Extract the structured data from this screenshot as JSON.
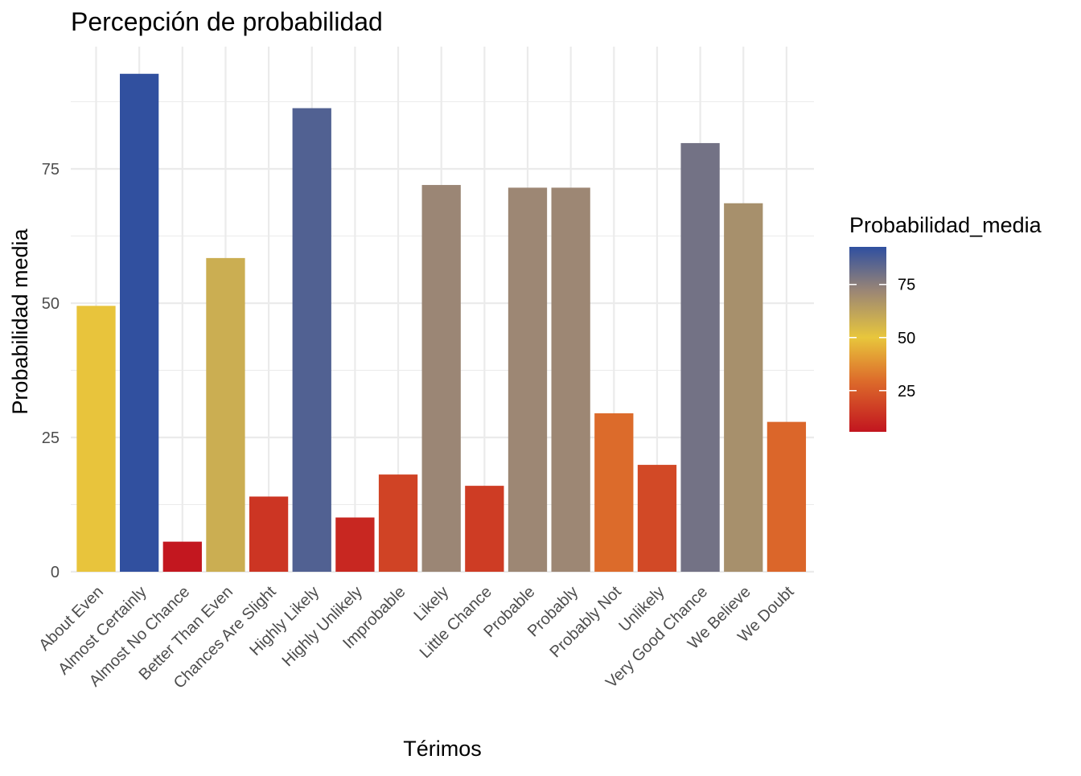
{
  "chart_data": {
    "type": "bar",
    "title": "Percepción de probabilidad",
    "xlabel": "Térimos",
    "ylabel": "Probabilidad media",
    "categories": [
      "About Even",
      "Almost Certainly",
      "Almost No Chance",
      "Better Than Even",
      "Chances Are Slight",
      "Highly Likely",
      "Highly Unlikely",
      "Improbable",
      "Likely",
      "Little Chance",
      "Probable",
      "Probably",
      "Probably Not",
      "Unlikely",
      "Very Good Chance",
      "We Believe",
      "We Doubt"
    ],
    "values": [
      49.5,
      92.7,
      5.6,
      58.4,
      14.0,
      86.3,
      10.1,
      18.1,
      72.0,
      16.0,
      71.5,
      71.5,
      29.5,
      19.9,
      79.8,
      68.6,
      27.9
    ],
    "ylim": [
      0,
      100
    ],
    "yticks": [
      0,
      25,
      50,
      75
    ],
    "grid": true,
    "legend": {
      "title": "Probabilidad_media",
      "placement": "right",
      "type": "colorbar",
      "range": [
        5.6,
        92.7
      ],
      "ticks": [
        25,
        50,
        75
      ]
    },
    "colors": {
      "low": "#c2151f",
      "mid_low": "#dd6d2b",
      "mid": "#e8c63c",
      "mid_high": "#9b8675",
      "high": "#2f4fa0"
    }
  }
}
